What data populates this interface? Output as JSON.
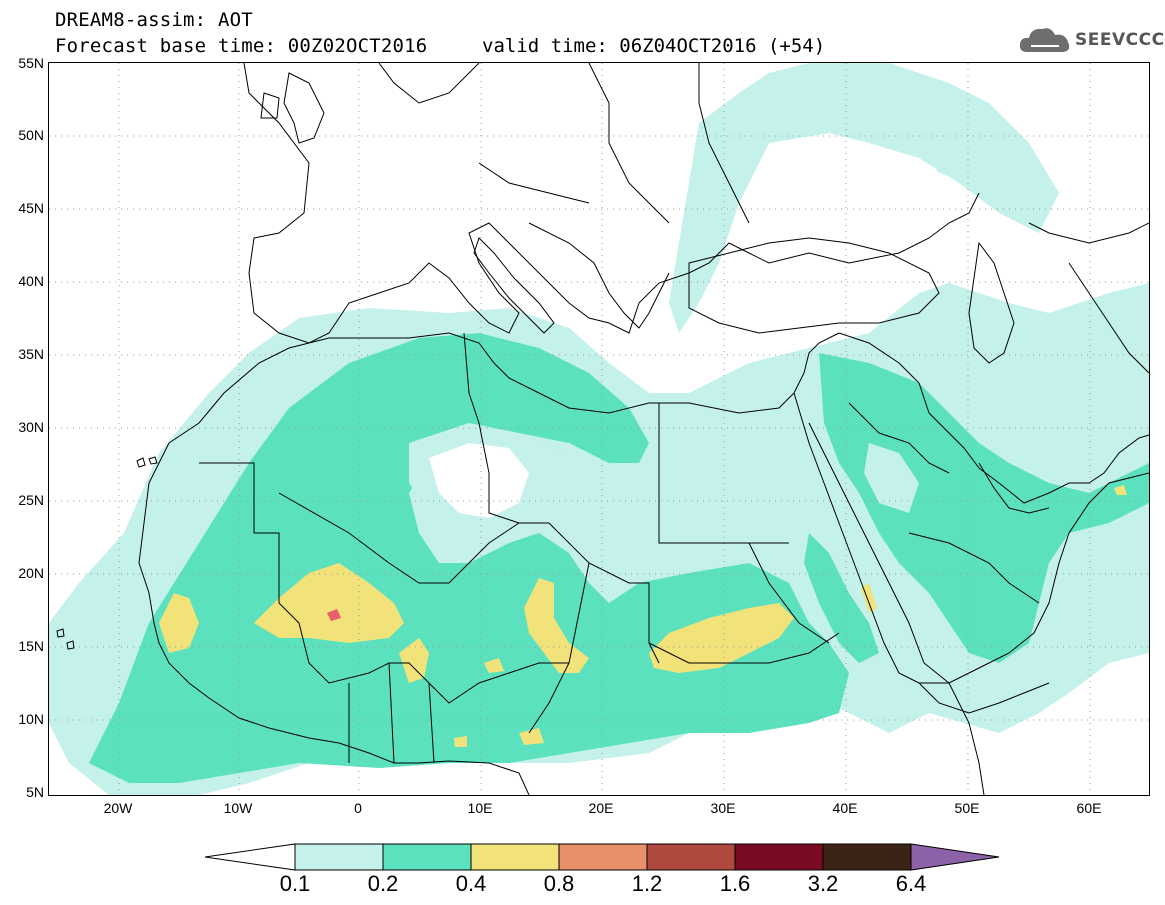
{
  "title": {
    "line1": "DREAM8-assim: AOT",
    "line2": "Forecast base time: 00Z02OCT2016",
    "valid": "valid time: 06Z04OCT2016 (+54)"
  },
  "logo": {
    "text": "SEEVCCC",
    "icon": "cloud-icon"
  },
  "map": {
    "lat_labels": [
      "55N",
      "50N",
      "45N",
      "40N",
      "35N",
      "30N",
      "25N",
      "20N",
      "15N",
      "10N",
      "5N"
    ],
    "lon_labels": [
      "20W",
      "10W",
      "0",
      "10E",
      "20E",
      "30E",
      "40E",
      "50E",
      "60E"
    ],
    "lat_range": [
      5,
      55
    ],
    "lon_range": [
      -25,
      65
    ],
    "grid": "dotted"
  },
  "legend": {
    "labels": [
      "0.1",
      "0.2",
      "0.4",
      "0.8",
      "1.2",
      "1.6",
      "3.2",
      "6.4"
    ],
    "colors": [
      "#ffffff",
      "#c4f1ea",
      "#5ce1bf",
      "#f2e27a",
      "#e8906a",
      "#b04a3e",
      "#7a0a24",
      "#3b2417",
      "#8c62a8"
    ]
  }
}
